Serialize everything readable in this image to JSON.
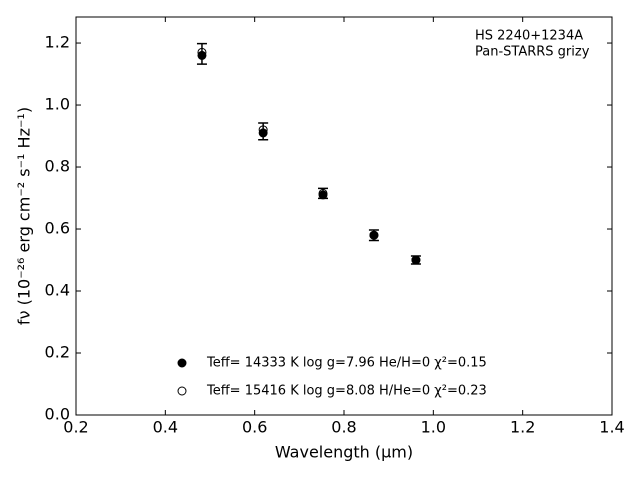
{
  "chart_data": {
    "type": "scatter",
    "annotation": [
      "HS 2240+1234A",
      "Pan-STARRS grizy"
    ],
    "xlabel": "Wavelength (μm)",
    "ylabel": "fν (10⁻²⁶ erg cm⁻² s⁻¹ Hz⁻¹)",
    "x": [
      0.482,
      0.619,
      0.753,
      0.867,
      0.961
    ],
    "observed": {
      "values": [
        1.165,
        0.915,
        0.715,
        0.58,
        0.5
      ],
      "errors": [
        0.033,
        0.027,
        0.016,
        0.017,
        0.013
      ],
      "color": "#000000"
    },
    "series": [
      {
        "name": "Teff= 14333 K  log g=7.96  He/H=0  χ²=0.15",
        "color": "#000000",
        "filled": true,
        "values": [
          1.16,
          0.91,
          0.71,
          0.58,
          0.5
        ]
      },
      {
        "name": "Teff= 15416 K  log g=8.08  H/He=0  χ²=0.23",
        "color": "#000000",
        "filled": false,
        "values": [
          1.17,
          0.92,
          0.715,
          0.58,
          0.5
        ]
      }
    ],
    "xlim": [
      0.2,
      1.4
    ],
    "ylim": [
      0,
      1.284
    ],
    "xticks": [
      0.2,
      0.4,
      0.6,
      0.8,
      {
        "value": 1,
        "label": "1.0"
      },
      1.2,
      1.4
    ],
    "yticks": [
      {
        "value": 0,
        "label": "0.0"
      },
      0.2,
      0.4,
      0.6,
      0.8,
      {
        "value": 1,
        "label": "1.0"
      },
      1.2
    ],
    "grid": false
  }
}
